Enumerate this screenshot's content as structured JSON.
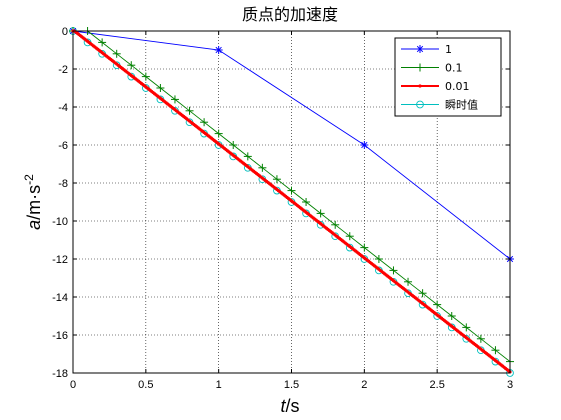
{
  "chart_data": {
    "type": "line",
    "title": "质点的加速度",
    "xlabel": {
      "italic": "t",
      "rest": "/s"
    },
    "ylabel": {
      "italic": "a",
      "rest": "/m·s",
      "sup": "-2"
    },
    "xlim": [
      0,
      3
    ],
    "ylim": [
      -18,
      0
    ],
    "xticks": [
      0,
      0.5,
      1,
      1.5,
      2,
      2.5,
      3
    ],
    "xtick_labels": [
      "0",
      "0.5",
      "1",
      "1.5",
      "2",
      "2.5",
      "3"
    ],
    "yticks": [
      0,
      -2,
      -4,
      -6,
      -8,
      -10,
      -12,
      -14,
      -16,
      -18
    ],
    "ytick_labels": [
      "0",
      "-2",
      "-4",
      "-6",
      "-8",
      "-10",
      "-12",
      "-14",
      "-16",
      "-18"
    ],
    "grid": true,
    "legend_position": "top-right",
    "series": [
      {
        "name": "1",
        "color": "#0000ff",
        "marker": "asterisk",
        "dt": 1,
        "x": [
          0,
          1,
          2,
          3
        ],
        "y": [
          0,
          -1,
          -6,
          -12
        ]
      },
      {
        "name": "0.1",
        "color": "#008000",
        "marker": "plus",
        "dt": 0.1,
        "formula": "y = -6*(t - 0.1)",
        "x_range": [
          0,
          3
        ]
      },
      {
        "name": "0.01",
        "color": "#ff0000",
        "marker": "dot",
        "dt": 0.01,
        "formula": "y = -6*(t - 0.01)",
        "x_range": [
          0,
          3
        ]
      },
      {
        "name": "瞬时值",
        "color": "#00bfbf",
        "marker": "circle",
        "dt": 0.1,
        "formula": "y = -6*t",
        "x_range": [
          0,
          3
        ]
      }
    ]
  }
}
